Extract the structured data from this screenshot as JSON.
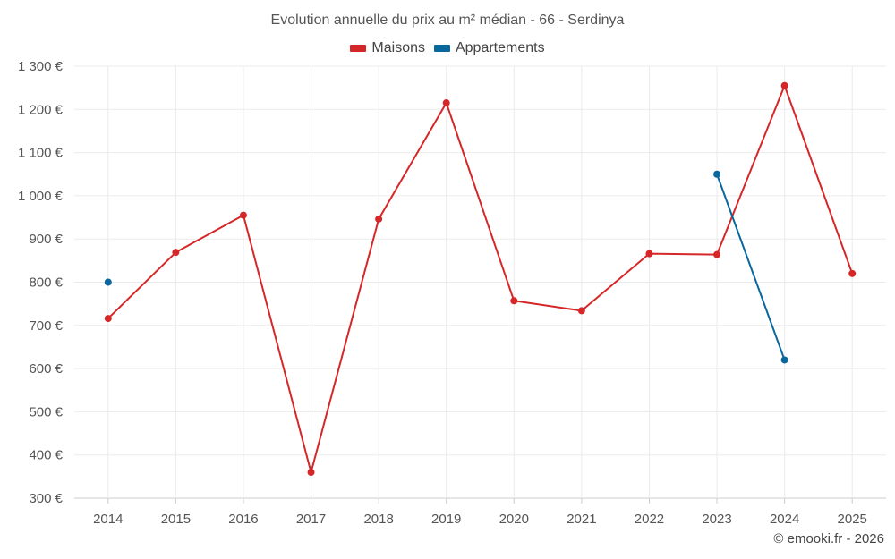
{
  "chart_data": {
    "type": "line",
    "title": "Evolution annuelle du prix au m² médian - 66 - Serdinya",
    "xlabel": "",
    "ylabel": "",
    "categories": [
      "2014",
      "2015",
      "2016",
      "2017",
      "2018",
      "2019",
      "2020",
      "2021",
      "2022",
      "2023",
      "2024",
      "2025"
    ],
    "ylim": [
      300,
      1300
    ],
    "yticks": [
      300,
      400,
      500,
      600,
      700,
      800,
      900,
      1000,
      1100,
      1200,
      1300
    ],
    "ytick_labels": [
      "300 €",
      "400 €",
      "500 €",
      "600 €",
      "700 €",
      "800 €",
      "900 €",
      "1 000 €",
      "1 100 €",
      "1 200 €",
      "1 300 €"
    ],
    "grid": true,
    "legend_position": "top-center",
    "series": [
      {
        "name": "Maisons",
        "color": "#d62728",
        "values": [
          716,
          869,
          955,
          360,
          946,
          1215,
          757,
          734,
          866,
          864,
          1255,
          820
        ]
      },
      {
        "name": "Appartements",
        "color": "#08679c",
        "values": [
          800,
          null,
          null,
          null,
          null,
          null,
          null,
          null,
          null,
          1050,
          620,
          null
        ]
      }
    ]
  },
  "footer": {
    "credit": "© emooki.fr - 2026"
  }
}
